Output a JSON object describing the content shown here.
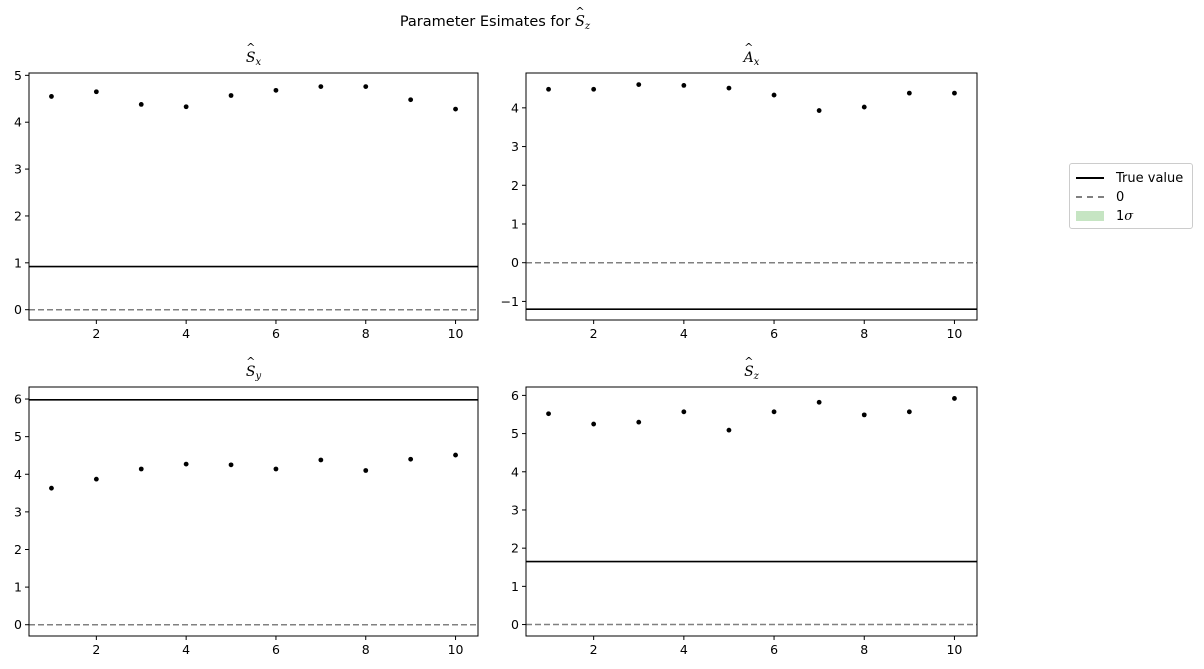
{
  "figure": {
    "title_prefix": "Parameter Esimates for ",
    "title_symbol": "S",
    "title_sub": "z"
  },
  "legend": {
    "items": [
      {
        "label": "True value",
        "style": "solid",
        "color": "#000000"
      },
      {
        "label": "0",
        "style": "dashed",
        "color": "#808080"
      },
      {
        "label": "1",
        "label_symbol": "σ",
        "style": "fill",
        "color": "#c6e5c3"
      }
    ]
  },
  "chart_data": [
    {
      "type": "scatter",
      "title_symbol": "S",
      "title_sub": "x",
      "x": [
        1,
        2,
        3,
        4,
        5,
        6,
        7,
        8,
        9,
        10
      ],
      "y": [
        4.55,
        4.65,
        4.38,
        4.33,
        4.57,
        4.68,
        4.76,
        4.76,
        4.48,
        4.28
      ],
      "true_value": 0.92,
      "zero_line": 0,
      "xlim": [
        0.5,
        10.5
      ],
      "ylim": [
        -0.22,
        5.05
      ],
      "xticks": [
        2,
        4,
        6,
        8,
        10
      ],
      "yticks": [
        0,
        1,
        2,
        3,
        4,
        5
      ]
    },
    {
      "type": "scatter",
      "title_symbol": "A",
      "title_sub": "x",
      "x": [
        1,
        2,
        3,
        4,
        5,
        6,
        7,
        8,
        9,
        10
      ],
      "y": [
        4.48,
        4.48,
        4.6,
        4.58,
        4.51,
        4.33,
        3.93,
        4.02,
        4.38,
        4.38
      ],
      "true_value": -1.2,
      "zero_line": 0,
      "xlim": [
        0.5,
        10.5
      ],
      "ylim": [
        -1.48,
        4.9
      ],
      "xticks": [
        2,
        4,
        6,
        8,
        10
      ],
      "yticks": [
        -1,
        0,
        1,
        2,
        3,
        4
      ]
    },
    {
      "type": "scatter",
      "title_symbol": "S",
      "title_sub": "y",
      "x": [
        1,
        2,
        3,
        4,
        5,
        6,
        7,
        8,
        9,
        10
      ],
      "y": [
        3.63,
        3.87,
        4.14,
        4.27,
        4.25,
        4.14,
        4.38,
        4.1,
        4.4,
        4.51
      ],
      "true_value": 5.98,
      "zero_line": 0,
      "xlim": [
        0.5,
        10.5
      ],
      "ylim": [
        -0.3,
        6.32
      ],
      "xticks": [
        2,
        4,
        6,
        8,
        10
      ],
      "yticks": [
        0,
        1,
        2,
        3,
        4,
        5,
        6
      ]
    },
    {
      "type": "scatter",
      "title_symbol": "S",
      "title_sub": "z",
      "x": [
        1,
        2,
        3,
        4,
        5,
        6,
        7,
        8,
        9,
        10
      ],
      "y": [
        5.52,
        5.25,
        5.3,
        5.57,
        5.09,
        5.57,
        5.82,
        5.49,
        5.57,
        5.92
      ],
      "true_value": 1.65,
      "zero_line": 0,
      "xlim": [
        0.5,
        10.5
      ],
      "ylim": [
        -0.3,
        6.22
      ],
      "xticks": [
        2,
        4,
        6,
        8,
        10
      ],
      "yticks": [
        0,
        1,
        2,
        3,
        4,
        5,
        6
      ]
    }
  ]
}
